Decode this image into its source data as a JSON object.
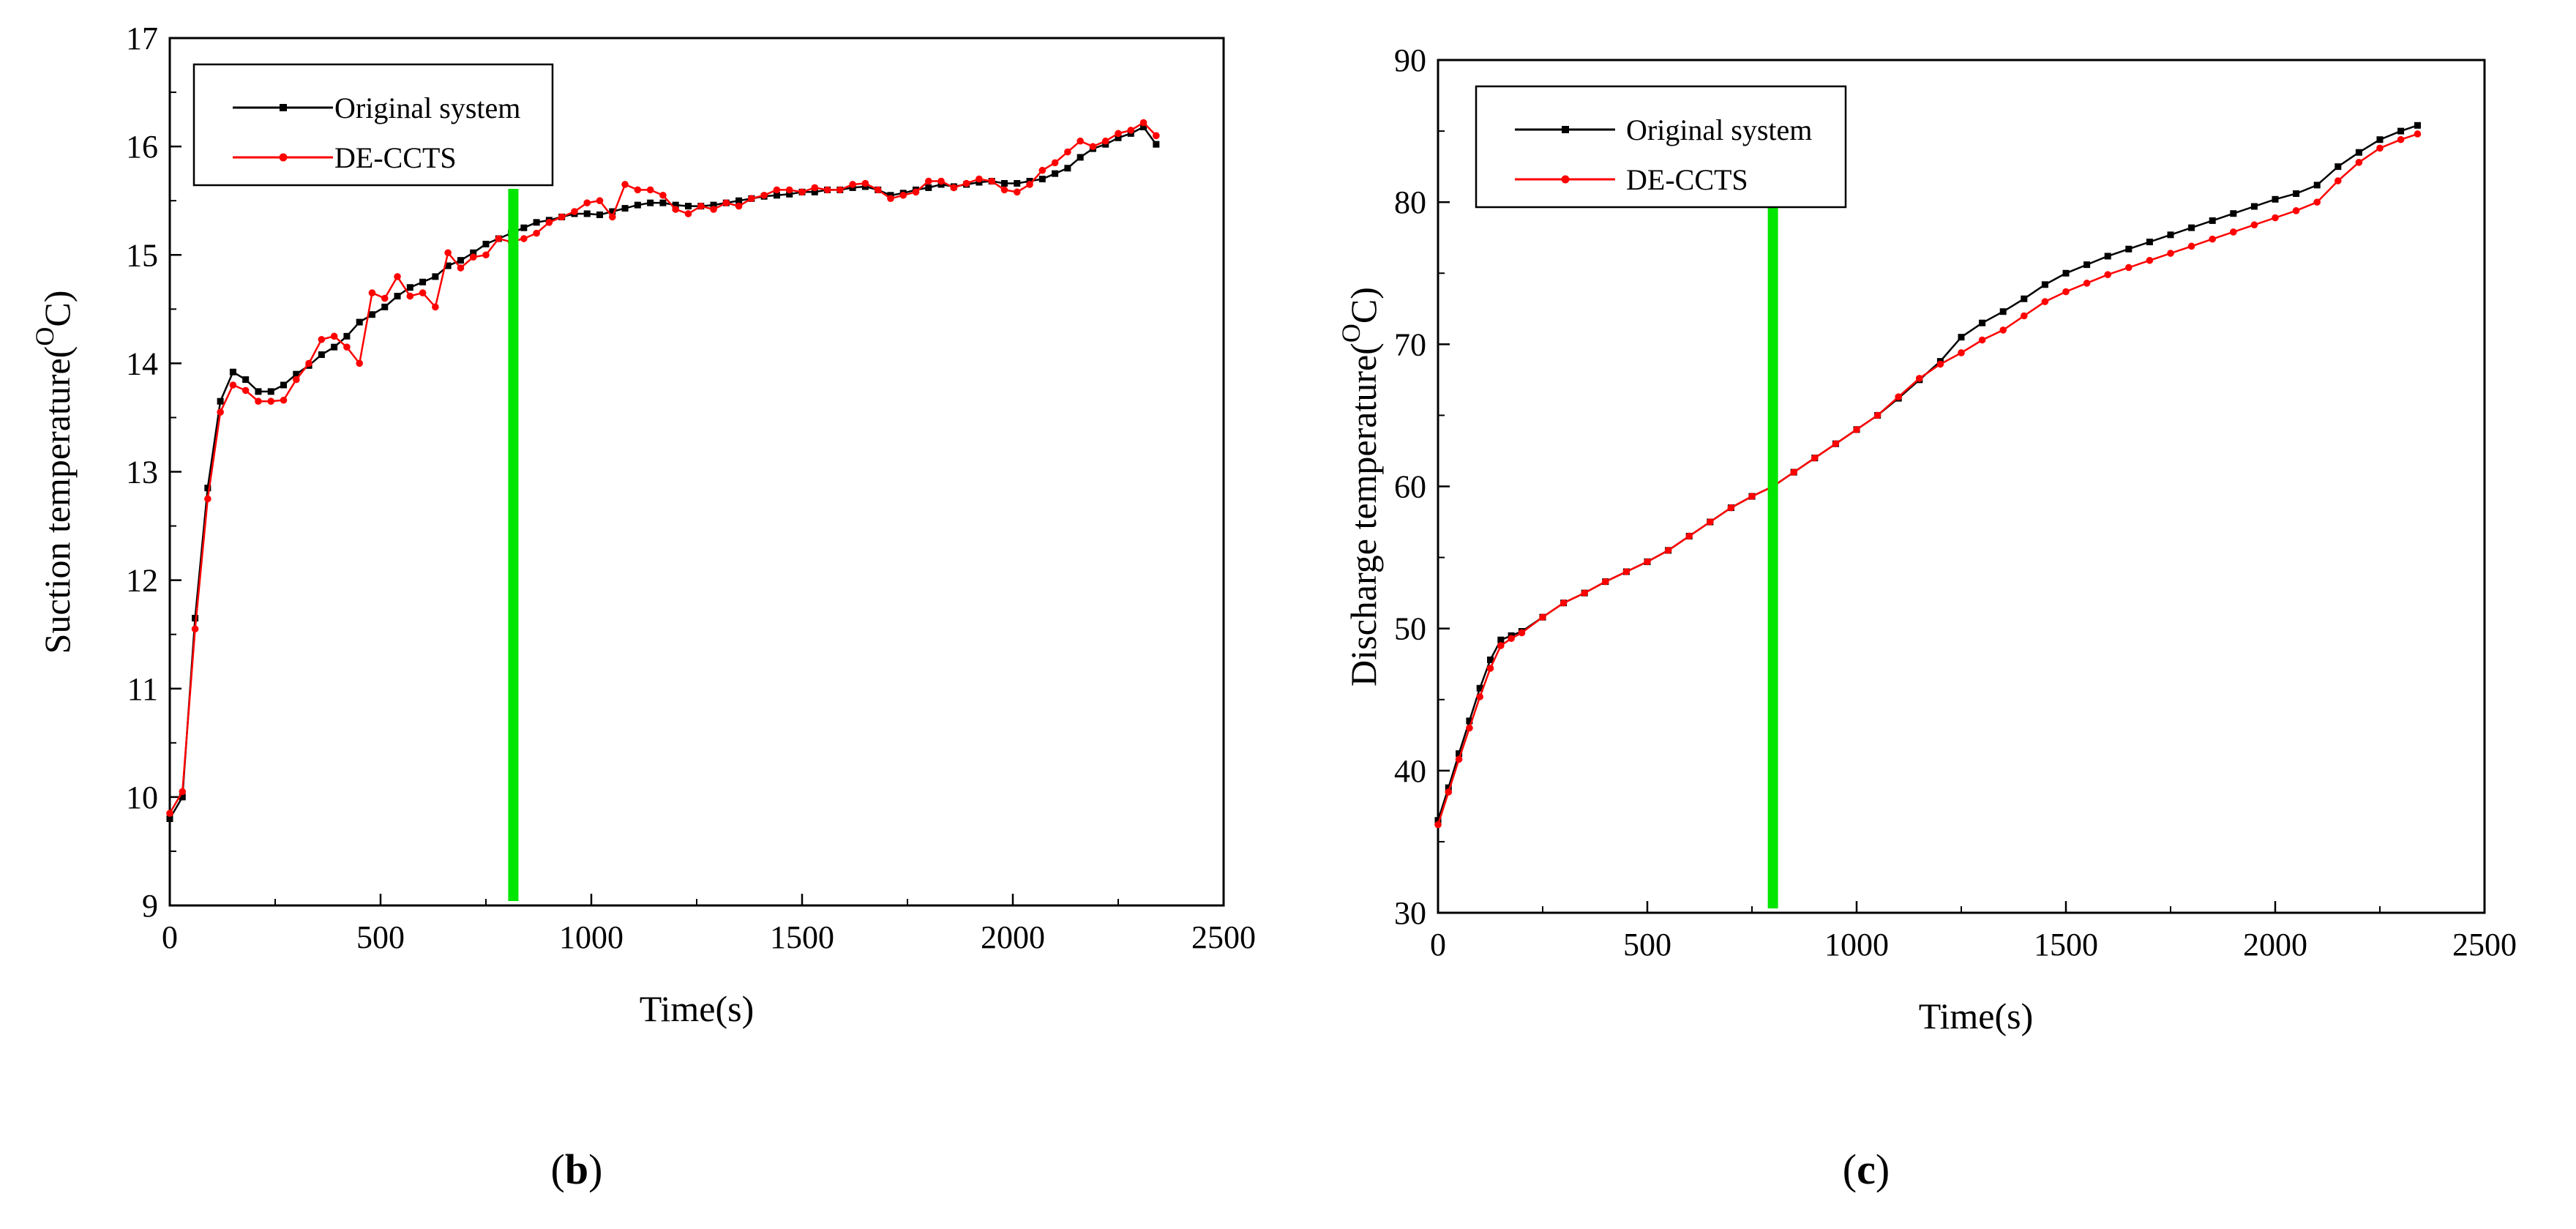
{
  "colors": {
    "original": "#000000",
    "decc": "#ff0000",
    "marker_line": "#00e600"
  },
  "chart_data": [
    {
      "type": "line",
      "panel_label": {
        "open": "(",
        "letter": "b",
        "close": ")"
      },
      "title": "",
      "xlabel": "Time(s)",
      "ylabel": "Suction temperature(",
      "ylabel_sup": "O",
      "ylabel_end": "C)",
      "xlim": [
        0,
        2500
      ],
      "ylim": [
        9,
        17
      ],
      "xticks": [
        0,
        500,
        1000,
        1500,
        2000,
        2500
      ],
      "yticks": [
        9,
        10,
        11,
        12,
        13,
        14,
        15,
        16,
        17
      ],
      "legend_position": "top-left",
      "vertical_marker_x": 815,
      "series": [
        {
          "name": "Original system",
          "marker": "square",
          "x": [
            0,
            30,
            60,
            90,
            120,
            150,
            180,
            210,
            240,
            270,
            300,
            330,
            360,
            390,
            420,
            450,
            480,
            510,
            540,
            570,
            600,
            630,
            660,
            690,
            720,
            750,
            780,
            810,
            840,
            870,
            900,
            930,
            960,
            990,
            1020,
            1050,
            1080,
            1110,
            1140,
            1170,
            1200,
            1230,
            1260,
            1290,
            1320,
            1350,
            1380,
            1410,
            1440,
            1470,
            1500,
            1530,
            1560,
            1590,
            1620,
            1650,
            1680,
            1710,
            1740,
            1770,
            1800,
            1830,
            1860,
            1890,
            1920,
            1950,
            1980,
            2010,
            2040,
            2070,
            2100,
            2130,
            2160,
            2190,
            2220,
            2250,
            2280,
            2310,
            2340
          ],
          "values": [
            9.8,
            10.0,
            11.65,
            12.85,
            13.65,
            13.92,
            13.85,
            13.74,
            13.74,
            13.8,
            13.9,
            13.98,
            14.08,
            14.15,
            14.25,
            14.38,
            14.45,
            14.52,
            14.62,
            14.7,
            14.75,
            14.8,
            14.9,
            14.95,
            15.02,
            15.1,
            15.15,
            15.2,
            15.25,
            15.3,
            15.32,
            15.35,
            15.38,
            15.38,
            15.37,
            15.4,
            15.43,
            15.46,
            15.48,
            15.48,
            15.46,
            15.45,
            15.45,
            15.46,
            15.48,
            15.5,
            15.52,
            15.54,
            15.55,
            15.56,
            15.58,
            15.58,
            15.6,
            15.6,
            15.62,
            15.63,
            15.6,
            15.55,
            15.57,
            15.6,
            15.62,
            15.65,
            15.63,
            15.65,
            15.67,
            15.68,
            15.66,
            15.66,
            15.68,
            15.7,
            15.75,
            15.8,
            15.9,
            15.98,
            16.02,
            16.08,
            16.12,
            16.18,
            16.02
          ]
        },
        {
          "name": "DE-CCTS",
          "marker": "circle",
          "x": [
            0,
            30,
            60,
            90,
            120,
            150,
            180,
            210,
            240,
            270,
            300,
            330,
            360,
            390,
            420,
            450,
            480,
            510,
            540,
            570,
            600,
            630,
            660,
            690,
            720,
            750,
            780,
            810,
            840,
            870,
            900,
            930,
            960,
            990,
            1020,
            1050,
            1080,
            1110,
            1140,
            1170,
            1200,
            1230,
            1260,
            1290,
            1320,
            1350,
            1380,
            1410,
            1440,
            1470,
            1500,
            1530,
            1560,
            1590,
            1620,
            1650,
            1680,
            1710,
            1740,
            1770,
            1800,
            1830,
            1860,
            1890,
            1920,
            1950,
            1980,
            2010,
            2040,
            2070,
            2100,
            2130,
            2160,
            2190,
            2220,
            2250,
            2280,
            2310,
            2340
          ],
          "values": [
            9.85,
            10.05,
            11.55,
            12.75,
            13.55,
            13.8,
            13.75,
            13.65,
            13.65,
            13.66,
            13.85,
            14.0,
            14.22,
            14.25,
            14.15,
            14.0,
            14.65,
            14.6,
            14.8,
            14.62,
            14.65,
            14.52,
            15.02,
            14.88,
            14.98,
            15.0,
            15.15,
            15.12,
            15.15,
            15.2,
            15.3,
            15.35,
            15.4,
            15.48,
            15.5,
            15.35,
            15.65,
            15.6,
            15.6,
            15.55,
            15.42,
            15.38,
            15.45,
            15.42,
            15.48,
            15.45,
            15.52,
            15.55,
            15.6,
            15.6,
            15.58,
            15.62,
            15.6,
            15.6,
            15.65,
            15.66,
            15.6,
            15.52,
            15.55,
            15.58,
            15.68,
            15.68,
            15.62,
            15.66,
            15.7,
            15.68,
            15.6,
            15.58,
            15.65,
            15.78,
            15.85,
            15.95,
            16.05,
            16.0,
            16.05,
            16.12,
            16.15,
            16.22,
            16.1
          ]
        }
      ]
    },
    {
      "type": "line",
      "panel_label": {
        "open": "(",
        "letter": "c",
        "close": ")"
      },
      "title": "",
      "xlabel": "Time(s)",
      "ylabel": "Discharge temperature(",
      "ylabel_sup": "O",
      "ylabel_end": "C)",
      "xlim": [
        0,
        2500
      ],
      "ylim": [
        30,
        90
      ],
      "xticks": [
        0,
        500,
        1000,
        1500,
        2000,
        2500
      ],
      "yticks": [
        30,
        40,
        50,
        60,
        70,
        80,
        90
      ],
      "legend_position": "top-left",
      "vertical_marker_x": 800,
      "series": [
        {
          "name": "Original system",
          "marker": "square",
          "x": [
            0,
            25,
            50,
            75,
            100,
            125,
            150,
            175,
            200,
            250,
            300,
            350,
            400,
            450,
            500,
            550,
            600,
            650,
            700,
            750,
            800,
            850,
            900,
            950,
            1000,
            1050,
            1100,
            1150,
            1200,
            1250,
            1300,
            1350,
            1400,
            1450,
            1500,
            1550,
            1600,
            1650,
            1700,
            1750,
            1800,
            1850,
            1900,
            1950,
            2000,
            2050,
            2100,
            2150,
            2200,
            2250,
            2300,
            2340
          ],
          "values": [
            36.5,
            38.8,
            41.2,
            43.5,
            45.8,
            47.8,
            49.2,
            49.5,
            49.8,
            50.8,
            51.8,
            52.5,
            53.3,
            54.0,
            54.7,
            55.5,
            56.5,
            57.5,
            58.5,
            59.3,
            60.0,
            61.0,
            62.0,
            63.0,
            64.0,
            65.0,
            66.2,
            67.5,
            68.8,
            70.5,
            71.5,
            72.3,
            73.2,
            74.2,
            75.0,
            75.6,
            76.2,
            76.7,
            77.2,
            77.7,
            78.2,
            78.7,
            79.2,
            79.7,
            80.2,
            80.6,
            81.2,
            82.5,
            83.5,
            84.4,
            85.0,
            85.4
          ]
        },
        {
          "name": "DE-CCTS",
          "marker": "circle",
          "x": [
            0,
            25,
            50,
            75,
            100,
            125,
            150,
            175,
            200,
            250,
            300,
            350,
            400,
            450,
            500,
            550,
            600,
            650,
            700,
            750,
            800,
            850,
            900,
            950,
            1000,
            1050,
            1100,
            1150,
            1200,
            1250,
            1300,
            1350,
            1400,
            1450,
            1500,
            1550,
            1600,
            1650,
            1700,
            1750,
            1800,
            1850,
            1900,
            1950,
            2000,
            2050,
            2100,
            2150,
            2200,
            2250,
            2300,
            2340
          ],
          "values": [
            36.2,
            38.5,
            40.8,
            43.0,
            45.2,
            47.2,
            48.8,
            49.3,
            49.7,
            50.8,
            51.8,
            52.5,
            53.3,
            54.0,
            54.7,
            55.5,
            56.5,
            57.5,
            58.5,
            59.3,
            60.0,
            61.0,
            62.0,
            63.0,
            64.0,
            65.0,
            66.3,
            67.6,
            68.6,
            69.4,
            70.3,
            71.0,
            72.0,
            73.0,
            73.7,
            74.3,
            74.9,
            75.4,
            75.9,
            76.4,
            76.9,
            77.4,
            77.9,
            78.4,
            78.9,
            79.4,
            80.0,
            81.5,
            82.8,
            83.8,
            84.4,
            84.8
          ]
        }
      ]
    }
  ]
}
